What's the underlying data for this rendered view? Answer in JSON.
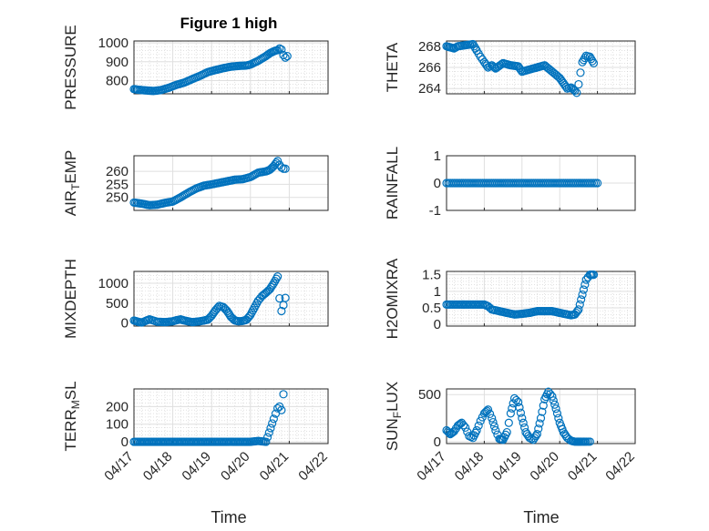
{
  "figure": {
    "title": "Figure 1 high",
    "xlabel": "Time"
  },
  "colors": {
    "marker": "#0072BD"
  },
  "chart_data": [
    {
      "type": "scatter",
      "ylabel": "PRESSURE",
      "xlim": [
        "04/17",
        "04/22"
      ],
      "x_ticks": [
        "04/17",
        "04/18",
        "04/19",
        "04/20",
        "04/21",
        "04/22"
      ],
      "ylim": [
        730,
        1010
      ],
      "y_ticks": [
        800,
        900,
        1000
      ],
      "minor_grid": true,
      "series": [
        {
          "x_days": [
            0.0,
            0.1,
            0.3,
            0.5,
            0.7,
            0.9,
            1.1,
            1.3,
            1.5,
            1.7,
            1.9,
            2.1,
            2.3,
            2.5,
            2.7,
            2.9,
            3.0,
            3.2,
            3.4,
            3.5,
            3.6,
            3.7,
            3.75,
            3.8,
            3.85,
            3.9,
            3.95
          ],
          "y": [
            755,
            752,
            748,
            745,
            750,
            762,
            778,
            790,
            808,
            825,
            845,
            856,
            866,
            874,
            878,
            880,
            885,
            905,
            930,
            945,
            955,
            962,
            970,
            965,
            935,
            922,
            930
          ]
        }
      ]
    },
    {
      "type": "scatter",
      "ylabel": "THETA",
      "xlim": [
        "04/17",
        "04/22"
      ],
      "x_ticks": [
        "04/17",
        "04/18",
        "04/19",
        "04/20",
        "04/21",
        "04/22"
      ],
      "ylim": [
        263.5,
        268.5
      ],
      "y_ticks": [
        264,
        266,
        268
      ],
      "minor_grid": true,
      "series": [
        {
          "x_days": [
            0.0,
            0.1,
            0.2,
            0.3,
            0.5,
            0.7,
            0.8,
            0.9,
            1.0,
            1.1,
            1.2,
            1.3,
            1.5,
            1.7,
            1.9,
            2.0,
            2.2,
            2.4,
            2.6,
            2.8,
            3.0,
            3.1,
            3.2,
            3.3,
            3.4,
            3.45,
            3.5,
            3.55,
            3.6,
            3.7,
            3.8,
            3.9
          ],
          "y": [
            268.0,
            267.9,
            267.8,
            268.0,
            268.1,
            268.2,
            267.6,
            267.0,
            266.5,
            266.0,
            266.2,
            265.9,
            266.4,
            266.2,
            266.1,
            265.6,
            265.8,
            266.0,
            266.2,
            265.6,
            265.0,
            264.5,
            264.0,
            264.1,
            263.8,
            263.6,
            264.4,
            265.5,
            266.5,
            267.1,
            267.0,
            266.4
          ]
        }
      ]
    },
    {
      "type": "scatter",
      "ylabel": "AIR_TEMP",
      "xlim": [
        "04/17",
        "04/22"
      ],
      "x_ticks": [
        "04/17",
        "04/18",
        "04/19",
        "04/20",
        "04/21",
        "04/22"
      ],
      "ylim": [
        245,
        266
      ],
      "y_ticks": [
        250,
        255,
        260
      ],
      "minor_grid": false,
      "series": [
        {
          "x_days": [
            0.0,
            0.2,
            0.4,
            0.6,
            0.8,
            1.0,
            1.2,
            1.4,
            1.6,
            1.8,
            2.0,
            2.2,
            2.4,
            2.6,
            2.8,
            3.0,
            3.2,
            3.4,
            3.5,
            3.6,
            3.7,
            3.75,
            3.8,
            3.85,
            3.9
          ],
          "y": [
            248.0,
            247.6,
            247.0,
            247.2,
            247.9,
            248.4,
            250.0,
            251.8,
            253.4,
            254.5,
            255.0,
            255.6,
            256.2,
            256.8,
            257.0,
            257.8,
            259.5,
            260.0,
            260.6,
            262.0,
            264.0,
            262.5,
            261.5,
            261.0,
            261.0
          ]
        }
      ]
    },
    {
      "type": "scatter",
      "ylabel": "RAINFALL",
      "xlim": [
        "04/17",
        "04/22"
      ],
      "x_ticks": [
        "04/17",
        "04/18",
        "04/19",
        "04/20",
        "04/21",
        "04/22"
      ],
      "ylim": [
        -1,
        1
      ],
      "y_ticks": [
        -1,
        0,
        1
      ],
      "minor_grid": false,
      "series": [
        {
          "x_range_days": [
            0.0,
            4.0
          ],
          "constant_y": 0
        }
      ]
    },
    {
      "type": "scatter",
      "ylabel": "MIXDEPTH",
      "xlim": [
        "04/17",
        "04/22"
      ],
      "x_ticks": [
        "04/17",
        "04/18",
        "04/19",
        "04/20",
        "04/21",
        "04/22"
      ],
      "ylim": [
        -80,
        1300
      ],
      "y_ticks": [
        0,
        500,
        1000
      ],
      "minor_grid": true,
      "series": [
        {
          "x_days": [
            0.0,
            0.1,
            0.2,
            0.3,
            0.4,
            0.5,
            0.6,
            0.8,
            1.0,
            1.1,
            1.2,
            1.3,
            1.5,
            1.7,
            1.9,
            2.0,
            2.1,
            2.2,
            2.3,
            2.4,
            2.5,
            2.6,
            2.7,
            2.8,
            2.9,
            3.0,
            3.1,
            3.2,
            3.3,
            3.4,
            3.5,
            3.6,
            3.7,
            3.75,
            3.8,
            3.85,
            3.9
          ],
          "y": [
            60,
            30,
            10,
            50,
            90,
            60,
            30,
            20,
            40,
            70,
            90,
            60,
            20,
            40,
            80,
            180,
            320,
            430,
            400,
            300,
            150,
            60,
            40,
            50,
            80,
            200,
            380,
            560,
            680,
            760,
            850,
            1000,
            1170,
            620,
            300,
            450,
            630
          ]
        }
      ]
    },
    {
      "type": "scatter",
      "ylabel": "H2OMIXRA",
      "xlim": [
        "04/17",
        "04/22"
      ],
      "x_ticks": [
        "04/17",
        "04/18",
        "04/19",
        "04/20",
        "04/21",
        "04/22"
      ],
      "ylim": [
        -0.05,
        1.6
      ],
      "y_ticks": [
        0,
        0.5,
        1,
        1.5
      ],
      "minor_grid": true,
      "series": [
        {
          "x_days": [
            0.0,
            0.2,
            0.4,
            0.6,
            0.8,
            1.0,
            1.1,
            1.2,
            1.4,
            1.6,
            1.8,
            2.0,
            2.2,
            2.4,
            2.6,
            2.8,
            3.0,
            3.2,
            3.3,
            3.4,
            3.5,
            3.6,
            3.7,
            3.8,
            3.9
          ],
          "y": [
            0.6,
            0.6,
            0.6,
            0.6,
            0.6,
            0.6,
            0.55,
            0.45,
            0.4,
            0.35,
            0.3,
            0.32,
            0.35,
            0.4,
            0.4,
            0.4,
            0.35,
            0.3,
            0.28,
            0.3,
            0.45,
            0.9,
            1.35,
            1.5,
            1.5
          ]
        }
      ]
    },
    {
      "type": "scatter",
      "ylabel": "TERR_MSL",
      "xlim": [
        "04/17",
        "04/22"
      ],
      "x_ticks": [
        "04/17",
        "04/18",
        "04/19",
        "04/20",
        "04/21",
        "04/22"
      ],
      "ylim": [
        -10,
        300
      ],
      "y_ticks": [
        0,
        100,
        200
      ],
      "minor_grid": true,
      "series": [
        {
          "x_days": [
            0.0,
            0.5,
            1.0,
            1.5,
            2.0,
            2.5,
            3.0,
            3.2,
            3.4,
            3.6,
            3.65,
            3.7,
            3.75,
            3.8,
            3.85
          ],
          "y": [
            0,
            0,
            0,
            0,
            0,
            0,
            0,
            5,
            0,
            130,
            160,
            190,
            200,
            180,
            270
          ]
        }
      ]
    },
    {
      "type": "scatter",
      "ylabel": "SUN_FLUX",
      "xlim": [
        "04/17",
        "04/22"
      ],
      "x_ticks": [
        "04/17",
        "04/18",
        "04/19",
        "04/20",
        "04/21",
        "04/22"
      ],
      "ylim": [
        -20,
        560
      ],
      "y_ticks": [
        0,
        500
      ],
      "minor_grid": false,
      "series": [
        {
          "x_days": [
            0.0,
            0.1,
            0.2,
            0.3,
            0.4,
            0.5,
            0.6,
            0.7,
            0.8,
            0.9,
            1.0,
            1.1,
            1.2,
            1.3,
            1.4,
            1.5,
            1.6,
            1.7,
            1.8,
            1.9,
            2.0,
            2.1,
            2.2,
            2.3,
            2.4,
            2.5,
            2.6,
            2.7,
            2.8,
            2.9,
            3.0,
            3.1,
            3.2,
            3.3,
            3.4,
            3.5,
            3.6,
            3.7,
            3.8
          ],
          "y": [
            120,
            80,
            110,
            170,
            200,
            150,
            60,
            40,
            120,
            220,
            300,
            340,
            250,
            120,
            30,
            20,
            100,
            300,
            460,
            420,
            250,
            100,
            40,
            20,
            80,
            250,
            450,
            530,
            480,
            350,
            200,
            100,
            40,
            10,
            0,
            0,
            0,
            0,
            0
          ]
        }
      ]
    }
  ]
}
